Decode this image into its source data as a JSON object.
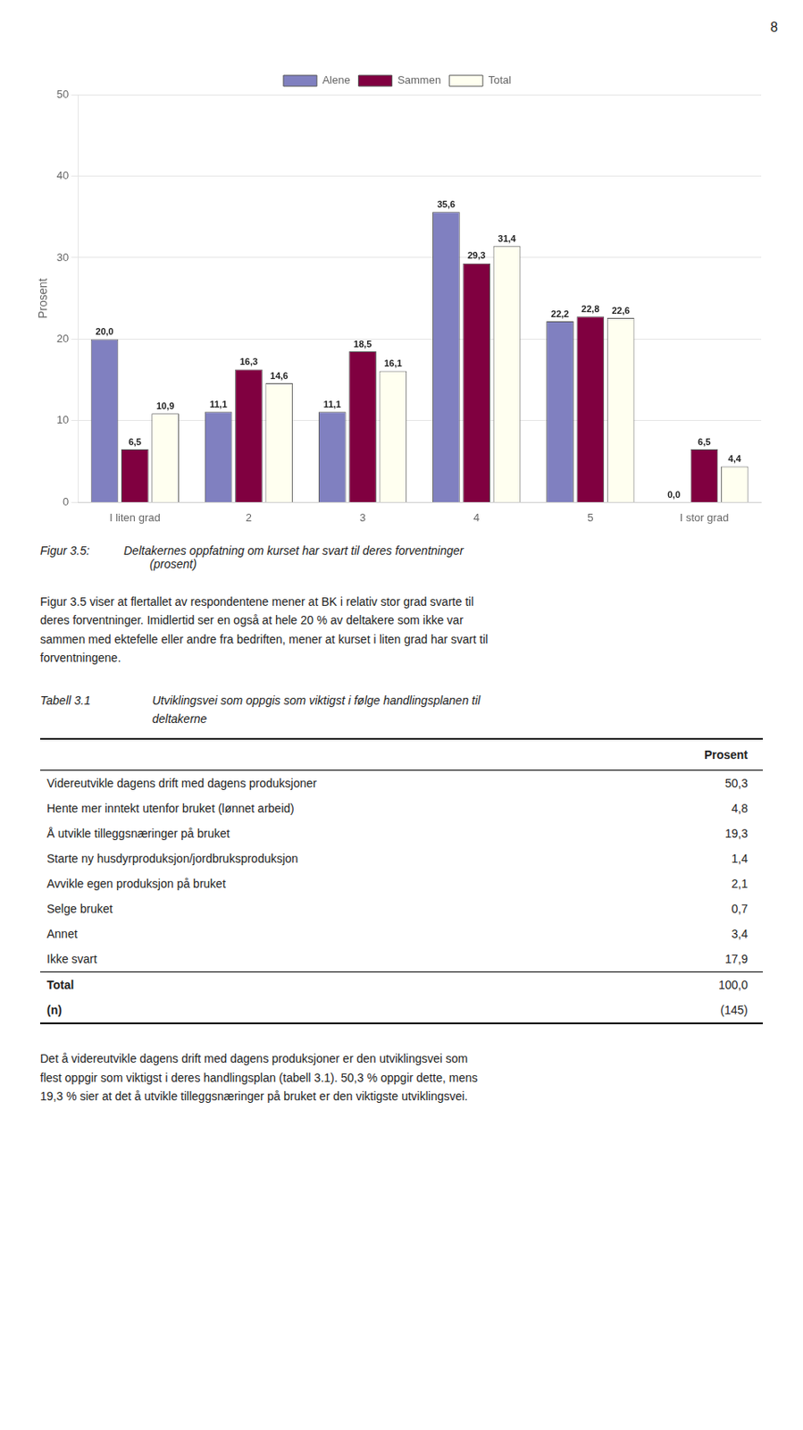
{
  "page_number": "8",
  "chart_data": {
    "type": "bar",
    "categories": [
      "I liten grad",
      "2",
      "3",
      "4",
      "5",
      "I stor grad"
    ],
    "series": [
      {
        "name": "Alene",
        "color": "#8080c0",
        "values": [
          20.0,
          11.1,
          11.1,
          35.6,
          22.2,
          0.0
        ],
        "value_labels": [
          "20,0",
          "11,1",
          "11,1",
          "35,6",
          "22,2",
          "0,0"
        ]
      },
      {
        "name": "Sammen",
        "color": "#800040",
        "values": [
          6.5,
          16.3,
          18.5,
          29.3,
          22.8,
          6.5
        ],
        "value_labels": [
          "6,5",
          "16,3",
          "18,5",
          "29,3",
          "22,8",
          "6,5"
        ]
      },
      {
        "name": "Total",
        "color": "#fffff0",
        "values": [
          10.9,
          14.6,
          16.1,
          31.4,
          22.6,
          4.4
        ],
        "value_labels": [
          "10,9",
          "14,6",
          "16,1",
          "31,4",
          "22,6",
          "4,4"
        ]
      }
    ],
    "y_label": "Prosent",
    "ylim": [
      0,
      50
    ],
    "yticks": [
      0,
      10,
      20,
      30,
      40,
      50
    ],
    "grid": true,
    "legend": "top",
    "data_labels": true
  },
  "figure_caption": {
    "label": "Figur 3.5:",
    "text": "Deltakernes oppfatning om kurset har svart til deres forventninger\n        (prosent)"
  },
  "paragraph1": [
    "Figur 3.5 viser at flertallet av respondentene mener at BK i relativ stor grad svarte til",
    "deres forventninger. Imidlertid ser en også at hele 20 % av deltakere som ikke var",
    "sammen med ektefelle eller andre fra bedriften, mener at kurset i liten grad har svart til",
    "forventningene."
  ],
  "table": {
    "label": "Tabell 3.1",
    "title": [
      "Utviklingsvei som oppgis som viktigst i følge handlingsplanen til",
      "deltakerne"
    ],
    "header": "Prosent",
    "rows": [
      [
        "Videreutvikle dagens drift med dagens produksjoner",
        "50,3"
      ],
      [
        "Hente mer inntekt utenfor bruket (lønnet arbeid)",
        "4,8"
      ],
      [
        "Å utvikle tilleggsnæringer på bruket",
        "19,3"
      ],
      [
        "Starte ny husdyrproduksjon/jordbruksproduksjon",
        "1,4"
      ],
      [
        "Avvikle egen produksjon på bruket",
        "2,1"
      ],
      [
        "Selge bruket",
        "0,7"
      ],
      [
        "Annet",
        "3,4"
      ],
      [
        "Ikke svart",
        "17,9"
      ]
    ],
    "total_rows": [
      [
        "Total",
        "100,0"
      ],
      [
        "(n)",
        "(145)"
      ]
    ]
  },
  "paragraph2": [
    "Det å videreutvikle dagens drift med dagens produksjoner er den utviklingsvei som",
    "flest oppgir som viktigst i deres handlingsplan (tabell 3.1). 50,3 % oppgir dette, mens",
    "19,3 % sier at det å utvikle tilleggsnæringer på bruket er den viktigste utviklingsvei."
  ]
}
